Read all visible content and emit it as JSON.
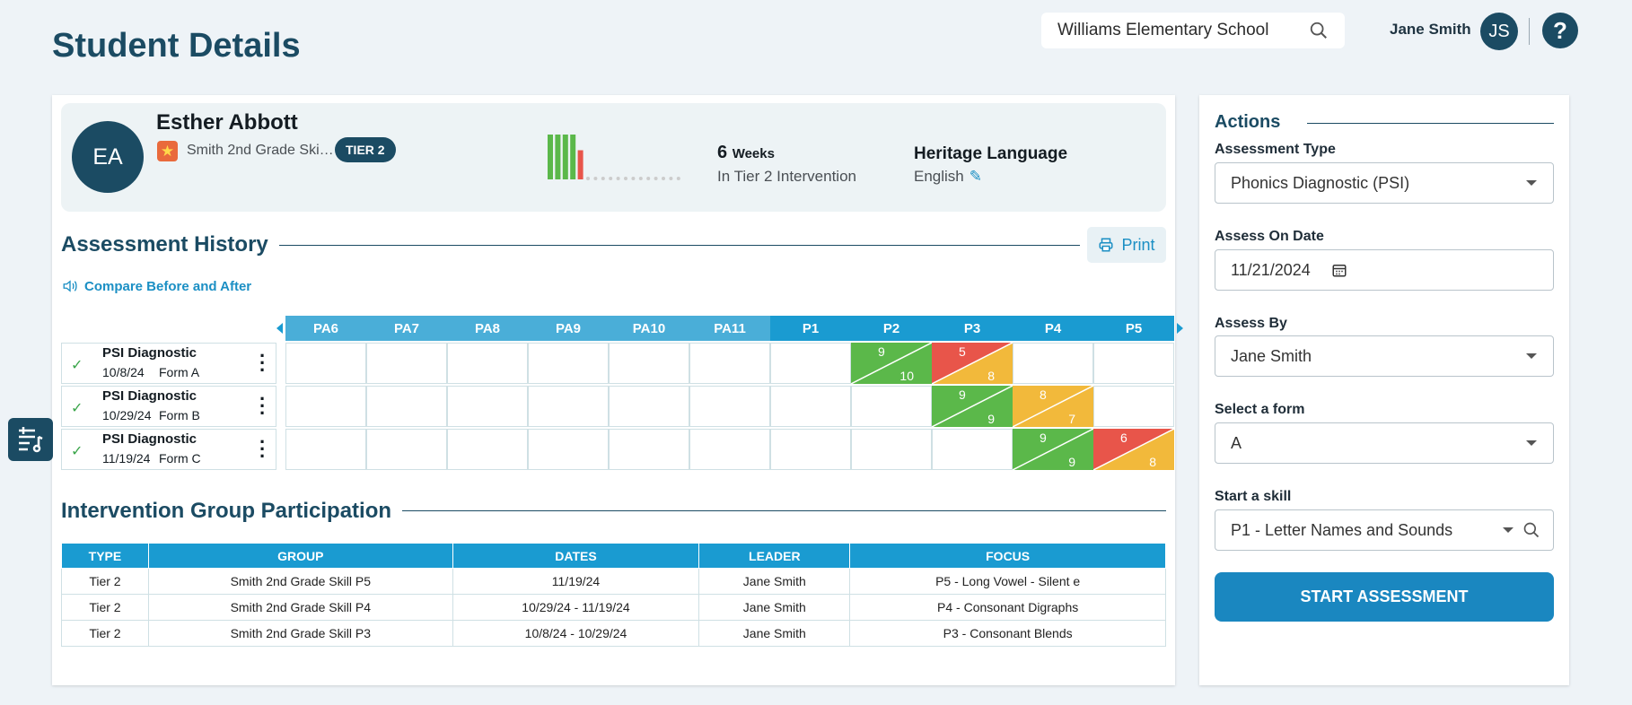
{
  "header": {
    "title": "Student Details",
    "school": "Williams Elementary School",
    "user_name": "Jane Smith",
    "user_initials": "JS",
    "help_label": "?"
  },
  "student": {
    "initials": "EA",
    "name": "Esther Abbott",
    "group": "Smith 2nd Grade Skill P5",
    "tier_badge": "TIER 2",
    "weeks_value": "6",
    "weeks_unit": "Weeks",
    "weeks_sub": "In Tier 2 Intervention",
    "heritage_label": "Heritage Language",
    "heritage_value": "English",
    "sparkline": [
      {
        "value": 1.0,
        "color": "#5bb84a"
      },
      {
        "value": 1.0,
        "color": "#5bb84a"
      },
      {
        "value": 1.0,
        "color": "#5bb84a"
      },
      {
        "value": 1.0,
        "color": "#5bb84a"
      },
      {
        "value": 0.65,
        "color": "#e8554a"
      },
      {
        "value": 0,
        "color": "#cccccc"
      },
      {
        "value": 0,
        "color": "#cccccc"
      },
      {
        "value": 0,
        "color": "#cccccc"
      },
      {
        "value": 0,
        "color": "#cccccc"
      },
      {
        "value": 0,
        "color": "#cccccc"
      },
      {
        "value": 0,
        "color": "#cccccc"
      },
      {
        "value": 0,
        "color": "#cccccc"
      },
      {
        "value": 0,
        "color": "#cccccc"
      },
      {
        "value": 0,
        "color": "#cccccc"
      },
      {
        "value": 0,
        "color": "#cccccc"
      },
      {
        "value": 0,
        "color": "#cccccc"
      },
      {
        "value": 0,
        "color": "#cccccc"
      },
      {
        "value": 0,
        "color": "#cccccc"
      }
    ]
  },
  "history": {
    "title": "Assessment History",
    "print_label": "Print",
    "compare_label": "Compare Before and After",
    "columns": [
      "PA6",
      "PA7",
      "PA8",
      "PA9",
      "PA10",
      "PA11",
      "P1",
      "P2",
      "P3",
      "P4",
      "P5"
    ],
    "column_colors": [
      "#4aaed8",
      "#4aaed8",
      "#4aaed8",
      "#4aaed8",
      "#4aaed8",
      "#4aaed8",
      "#1a9bd1",
      "#1a9bd1",
      "#1a9bd1",
      "#1a9bd1",
      "#1a9bd1"
    ],
    "rows": [
      {
        "name": "PSI Diagnostic",
        "date": "10/8/24",
        "form": "Form A",
        "scores": [
          null,
          null,
          null,
          null,
          null,
          null,
          null,
          {
            "top": "9",
            "bottom": "10",
            "top_color": "#5bb84a",
            "bottom_color": "#5bb84a"
          },
          {
            "top": "5",
            "bottom": "8",
            "top_color": "#e8554a",
            "bottom_color": "#f2b93b"
          },
          null,
          null
        ]
      },
      {
        "name": "PSI Diagnostic",
        "date": "10/29/24",
        "form": "Form B",
        "scores": [
          null,
          null,
          null,
          null,
          null,
          null,
          null,
          null,
          {
            "top": "9",
            "bottom": "9",
            "top_color": "#5bb84a",
            "bottom_color": "#5bb84a"
          },
          {
            "top": "8",
            "bottom": "7",
            "top_color": "#f2b93b",
            "bottom_color": "#f2b93b"
          },
          null
        ]
      },
      {
        "name": "PSI Diagnostic",
        "date": "11/19/24",
        "form": "Form C",
        "scores": [
          null,
          null,
          null,
          null,
          null,
          null,
          null,
          null,
          null,
          {
            "top": "9",
            "bottom": "9",
            "top_color": "#5bb84a",
            "bottom_color": "#5bb84a"
          },
          {
            "top": "6",
            "bottom": "8",
            "top_color": "#e8554a",
            "bottom_color": "#f2b93b"
          }
        ]
      }
    ]
  },
  "participation": {
    "title": "Intervention Group Participation",
    "headers": [
      "TYPE",
      "GROUP",
      "DATES",
      "LEADER",
      "FOCUS"
    ],
    "rows": [
      [
        "Tier 2",
        "Smith 2nd Grade Skill P5",
        "11/19/24",
        "Jane Smith",
        "P5 - Long Vowel - Silent e"
      ],
      [
        "Tier 2",
        "Smith 2nd Grade Skill P4",
        "10/29/24 - 11/19/24",
        "Jane Smith",
        "P4 - Consonant Digraphs"
      ],
      [
        "Tier 2",
        "Smith 2nd Grade Skill P3",
        "10/8/24 - 10/29/24",
        "Jane Smith",
        "P3 - Consonant Blends"
      ]
    ]
  },
  "actions": {
    "title": "Actions",
    "assessment_type_label": "Assessment Type",
    "assessment_type_value": "Phonics Diagnostic (PSI)",
    "assess_date_label": "Assess On Date",
    "assess_date_value": "11/21/2024",
    "assess_by_label": "Assess By",
    "assess_by_value": "Jane Smith",
    "form_label": "Select a form",
    "form_value": "A",
    "skill_label": "Start a skill",
    "skill_value": "P1 - Letter Names and Sounds",
    "start_button": "START ASSESSMENT"
  }
}
